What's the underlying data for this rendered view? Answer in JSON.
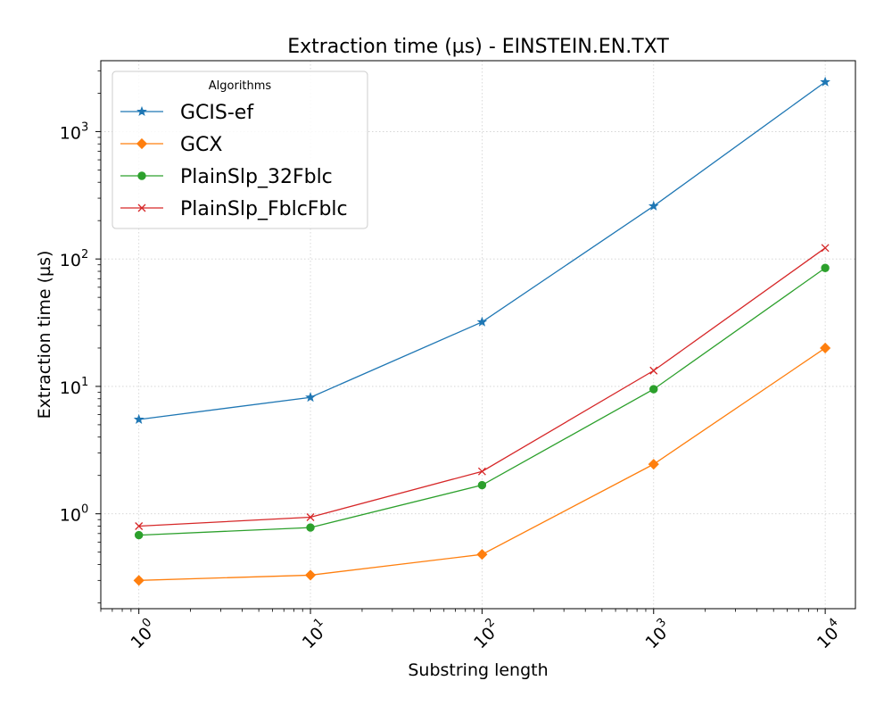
{
  "chart_data": {
    "type": "line",
    "title": "Extraction time (µs) - EINSTEIN.EN.TXT",
    "xlabel": "Substring length",
    "ylabel": "Extraction time (µs)",
    "x_scale": "log",
    "y_scale": "log",
    "x": [
      1,
      10,
      100,
      1000,
      10000
    ],
    "xlim": [
      0.6,
      15000
    ],
    "ylim": [
      0.18,
      3600
    ],
    "x_ticks": [
      {
        "base": "10",
        "exp": "0",
        "value": 1
      },
      {
        "base": "10",
        "exp": "1",
        "value": 10
      },
      {
        "base": "10",
        "exp": "2",
        "value": 100
      },
      {
        "base": "10",
        "exp": "3",
        "value": 1000
      },
      {
        "base": "10",
        "exp": "4",
        "value": 10000
      }
    ],
    "y_ticks": [
      {
        "base": "10",
        "exp": "0",
        "value": 1
      },
      {
        "base": "10",
        "exp": "1",
        "value": 10
      },
      {
        "base": "10",
        "exp": "2",
        "value": 100
      },
      {
        "base": "10",
        "exp": "3",
        "value": 1000
      }
    ],
    "grid": true,
    "legend": {
      "title": "Algorithms",
      "placement": "top-left"
    },
    "series": [
      {
        "name": "GCIS-ef",
        "color": "#1f77b4",
        "marker": "star",
        "values": [
          5.5,
          8.2,
          32,
          260,
          2450
        ]
      },
      {
        "name": "GCX",
        "color": "#ff7f0e",
        "marker": "diamond",
        "values": [
          0.3,
          0.33,
          0.48,
          2.45,
          20
        ]
      },
      {
        "name": "PlainSlp_32Fblc",
        "color": "#2ca02c",
        "marker": "circle",
        "values": [
          0.68,
          0.78,
          1.68,
          9.5,
          85
        ]
      },
      {
        "name": "PlainSlp_FblcFblc",
        "color": "#d62728",
        "marker": "x",
        "values": [
          0.8,
          0.94,
          2.15,
          13.3,
          122
        ]
      }
    ]
  }
}
